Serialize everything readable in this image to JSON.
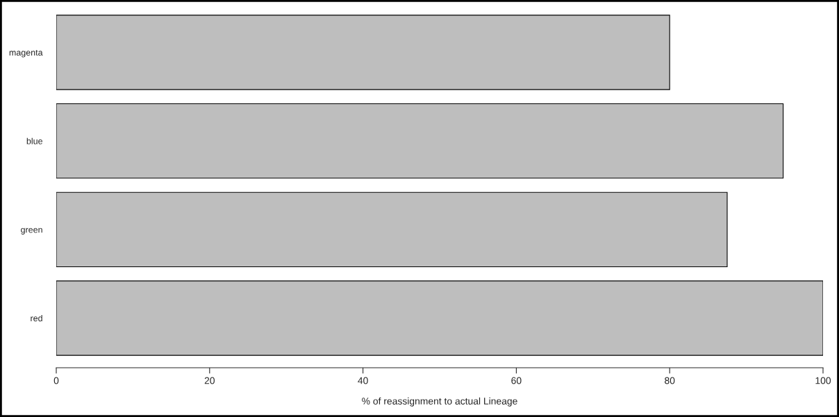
{
  "chart_data": {
    "type": "bar",
    "orientation": "horizontal",
    "xlabel": "% of reassignment to actual Lineage",
    "categories": [
      "magenta",
      "blue",
      "green",
      "red"
    ],
    "values": [
      80,
      94.8,
      87.5,
      100
    ],
    "color": "#bebebe",
    "xlim": [
      0,
      100
    ],
    "xticks": [
      0,
      20,
      40,
      60,
      80,
      100
    ],
    "grid": false,
    "legend": false
  }
}
